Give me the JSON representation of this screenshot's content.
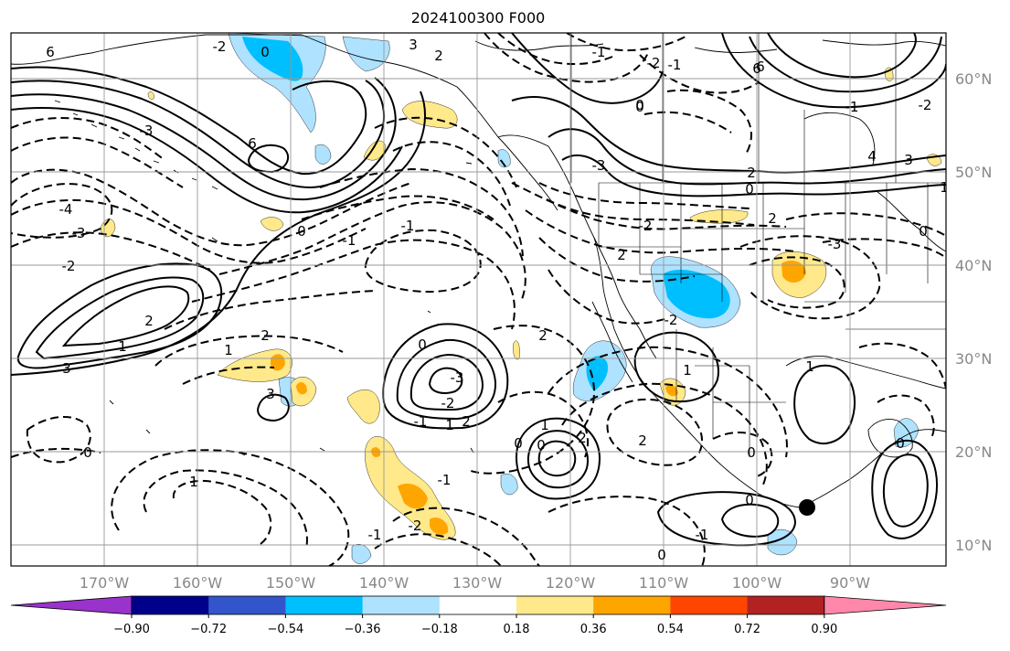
{
  "title": "2024100300 F000",
  "latitude_labels": [
    "60°N",
    "50°N",
    "40°N",
    "30°N",
    "20°N",
    "10°N"
  ],
  "longitude_labels": [
    "170°W",
    "160°W",
    "150°W",
    "140°W",
    "130°W",
    "120°W",
    "110°W",
    "100°W",
    "90°W"
  ],
  "colorbar": {
    "colors": [
      "#9933cc",
      "#00008b",
      "#3355cc",
      "#00bfff",
      "#aee2ff",
      "#ffffff",
      "#ffe98a",
      "#ffa500",
      "#ff4500",
      "#b22222",
      "#ff88aa"
    ],
    "tick_labels": [
      "−0.90",
      "−0.72",
      "−0.54",
      "−0.36",
      "−0.18",
      "0.18",
      "0.36",
      "0.54",
      "0.72",
      "0.90"
    ]
  },
  "contour_labels": [
    "6",
    "-2",
    "0",
    "3",
    "2",
    "6",
    "-1",
    "0",
    "-2",
    "-1",
    "-3",
    "6",
    "-4",
    "-3",
    "-2",
    "0",
    "-1",
    "-1",
    "2",
    "1",
    "3",
    "1",
    "2",
    "-3",
    "-2",
    "-1",
    "0",
    "1",
    "2",
    "3",
    "1",
    "0",
    "2",
    "2",
    "1",
    "0",
    "-2",
    "-1",
    "0",
    "-1",
    "0",
    "2",
    "0",
    "-2",
    "1",
    "1",
    "0",
    "0",
    "-1",
    "2",
    "-3",
    "4",
    "3",
    "0",
    "6",
    "0",
    "2",
    "-2",
    "2",
    "0",
    "1",
    "-3",
    "-2",
    "-1"
  ],
  "marker": {
    "label": "",
    "color": "#000000"
  }
}
